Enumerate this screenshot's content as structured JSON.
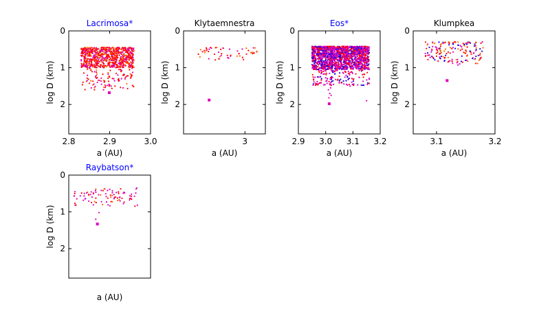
{
  "figure": {
    "background": "#ffffff"
  },
  "colors": {
    "red": "#ff0000",
    "orange": "#ff6600",
    "magenta": "#dd00bb",
    "blue": "#2200dd",
    "highlight_title": "#0000ff",
    "normal_title": "#000000"
  },
  "chart_data": [
    {
      "type": "scatter",
      "title": "Lacrimosa*",
      "title_highlight": true,
      "xlabel": "a (AU)",
      "ylabel": "log D (km)",
      "xlim": [
        2.8,
        3.0
      ],
      "ylim": [
        0,
        2.8
      ],
      "y_inverted": true,
      "xticks": [
        2.8,
        2.9,
        3.0
      ],
      "xtick_labels": [
        "2.8",
        "2.9",
        "3.0"
      ],
      "yticks": [
        0,
        1,
        2
      ],
      "ytick_labels": [
        "0",
        "1",
        "2"
      ],
      "cluster": {
        "x_range": [
          2.83,
          2.96
        ],
        "dense_y": [
          0.45,
          1.0
        ],
        "sparse_y_max": 1.6,
        "count": 900,
        "palette": [
          "red",
          "red",
          "orange",
          "magenta"
        ]
      },
      "outliers": [
        [
          2.845,
          1.35
        ],
        [
          2.855,
          1.55
        ],
        [
          2.87,
          1.4
        ],
        [
          2.885,
          1.6
        ],
        [
          2.88,
          1.45
        ],
        [
          2.91,
          1.3
        ],
        [
          2.92,
          1.2
        ],
        [
          2.94,
          1.25
        ]
      ],
      "highlight_points": [
        [
          2.899,
          1.68
        ]
      ]
    },
    {
      "type": "scatter",
      "title": "Klytaemnestra",
      "title_highlight": false,
      "xlabel": "a (AU)",
      "ylabel": "log D (km)",
      "xlim": [
        2.94,
        3.02
      ],
      "ylim": [
        0,
        2.8
      ],
      "y_inverted": true,
      "xticks": [
        3.0
      ],
      "xtick_labels": [
        "3"
      ],
      "yticks": [
        0,
        1,
        2
      ],
      "ytick_labels": [
        "0",
        "1",
        "2"
      ],
      "cluster": {
        "x_range": [
          2.953,
          3.013
        ],
        "dense_y": [
          0.45,
          0.8
        ],
        "sparse_y_max": 0.8,
        "count": 55,
        "palette": [
          "red",
          "red",
          "orange",
          "magenta"
        ]
      },
      "outliers": [],
      "highlight_points": [
        [
          2.965,
          1.88
        ]
      ]
    },
    {
      "type": "scatter",
      "title": "Eos*",
      "title_highlight": true,
      "xlabel": "a (AU)",
      "ylabel": "log D (km)",
      "xlim": [
        2.9,
        3.2
      ],
      "ylim": [
        0,
        2.8
      ],
      "y_inverted": true,
      "xticks": [
        2.9,
        3.0,
        3.1,
        3.2
      ],
      "xtick_labels": [
        "2.9",
        "3.0",
        "3.1",
        "3.2"
      ],
      "yticks": [
        0,
        1,
        2
      ],
      "ytick_labels": [
        "0",
        "1",
        "2"
      ],
      "cluster": {
        "x_range": [
          2.95,
          3.16
        ],
        "dense_y": [
          0.42,
          1.05
        ],
        "sparse_y_max": 1.5,
        "count": 1800,
        "palette": [
          "magenta",
          "magenta",
          "red",
          "blue"
        ]
      },
      "outliers": [
        [
          3.01,
          1.6
        ],
        [
          3.015,
          1.7
        ],
        [
          3.02,
          1.75
        ],
        [
          3.012,
          1.82
        ],
        [
          3.018,
          1.55
        ],
        [
          3.09,
          1.5
        ],
        [
          3.1,
          1.45
        ],
        [
          3.15,
          1.9
        ]
      ],
      "highlight_points": [
        [
          3.013,
          1.98
        ]
      ]
    },
    {
      "type": "scatter",
      "title": "Klumpkea",
      "title_highlight": false,
      "xlabel": "a (AU)",
      "ylabel": "log D (km)",
      "xlim": [
        3.06,
        3.2
      ],
      "ylim": [
        0,
        2.8
      ],
      "y_inverted": true,
      "xticks": [
        3.1,
        3.2
      ],
      "xtick_labels": [
        "3.1",
        "3.2"
      ],
      "yticks": [
        0,
        1,
        2
      ],
      "ytick_labels": [
        "0",
        "1",
        "2"
      ],
      "cluster": {
        "x_range": [
          3.08,
          3.18
        ],
        "dense_y": [
          0.3,
          0.9
        ],
        "sparse_y_max": 1.0,
        "count": 160,
        "palette": [
          "red",
          "orange",
          "magenta",
          "blue"
        ]
      },
      "outliers": [],
      "highlight_points": [
        [
          3.118,
          1.35
        ]
      ]
    },
    {
      "type": "scatter",
      "title": "Raybatson*",
      "title_highlight": true,
      "xlabel": "a (AU)",
      "ylabel": "log D (km)",
      "xlim": [
        0,
        1
      ],
      "ylim": [
        0,
        2.8
      ],
      "y_inverted": true,
      "xticks": [],
      "xtick_labels": [],
      "yticks": [
        0,
        1,
        2
      ],
      "ytick_labels": [
        "0",
        "1",
        "2"
      ],
      "cluster": {
        "x_range": [
          0.05,
          0.85
        ],
        "dense_y": [
          0.35,
          0.85
        ],
        "sparse_y_max": 0.85,
        "count": 90,
        "palette": [
          "red",
          "magenta",
          "magenta",
          "orange"
        ]
      },
      "outliers": [
        [
          0.33,
          1.2
        ],
        [
          0.37,
          1.02
        ]
      ],
      "highlight_points": [
        [
          0.35,
          1.33
        ]
      ]
    }
  ]
}
